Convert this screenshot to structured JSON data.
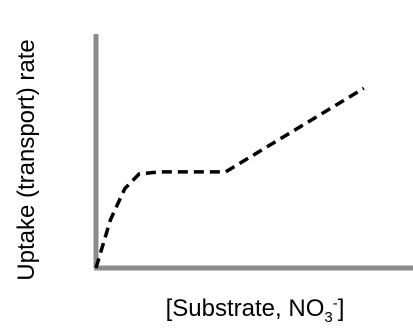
{
  "chart_data": {
    "type": "line",
    "title": "",
    "xlabel": "[Substrate, NO3-]",
    "xlabel_main": "[Substrate, NO",
    "xlabel_sub": "3",
    "xlabel_sup": "-",
    "xlabel_close": "]",
    "ylabel": "Uptake (transport) rate",
    "ticks": false,
    "grid": false,
    "legend": "none",
    "xlim": [
      0,
      10
    ],
    "ylim": [
      0,
      10
    ],
    "series": [
      {
        "line_style": "dashed",
        "color": "#000000",
        "points": [
          {
            "x": 0.0,
            "y": 0.0
          },
          {
            "x": 0.5,
            "y": 2.3
          },
          {
            "x": 1.0,
            "y": 3.8
          },
          {
            "x": 1.5,
            "y": 4.5
          },
          {
            "x": 2.2,
            "y": 4.6
          },
          {
            "x": 4.5,
            "y": 4.6
          },
          {
            "x": 9.3,
            "y": 8.6
          }
        ]
      }
    ],
    "axis_color": "#8c8c8c"
  }
}
